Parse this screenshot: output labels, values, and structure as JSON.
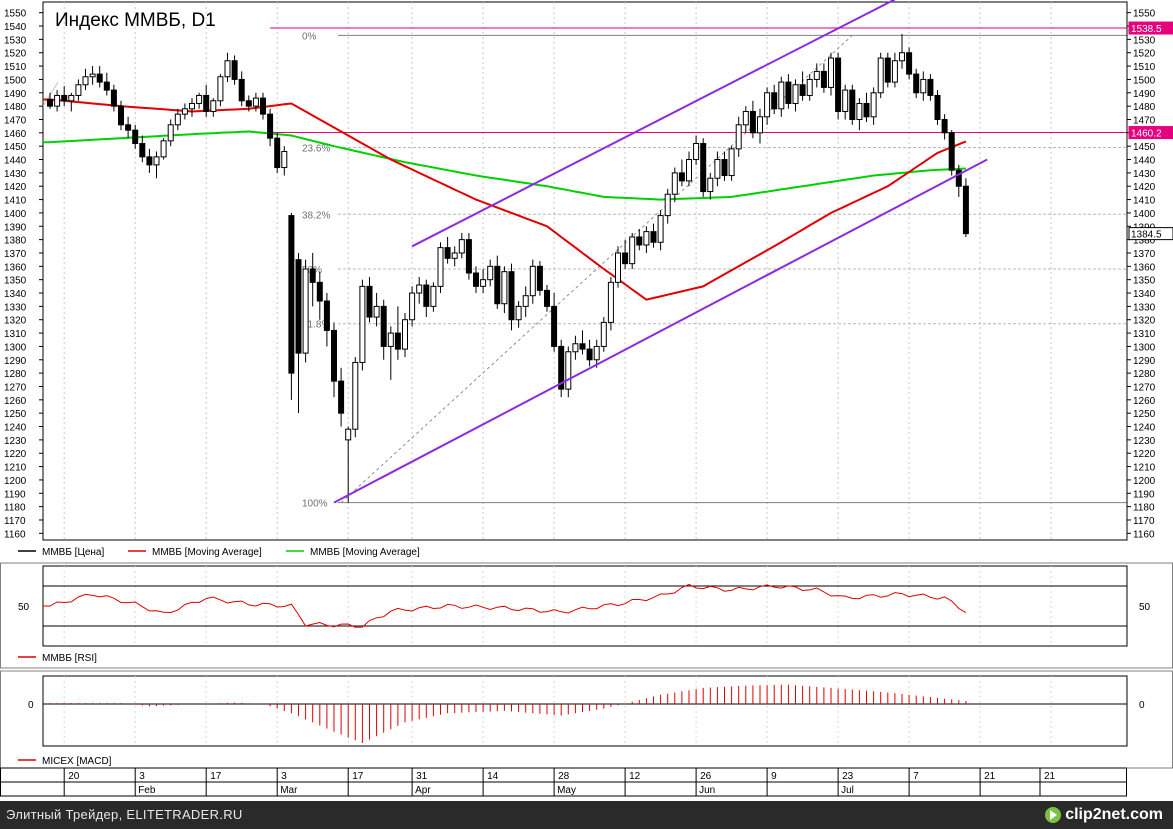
{
  "chart_data": {
    "type": "candlestick",
    "title": "Индекс ММВБ, D1",
    "ylim": [
      1155,
      1558
    ],
    "y_ticks": [
      1160,
      1170,
      1180,
      1190,
      1200,
      1210,
      1220,
      1230,
      1240,
      1250,
      1260,
      1270,
      1280,
      1290,
      1300,
      1310,
      1320,
      1330,
      1340,
      1350,
      1360,
      1370,
      1380,
      1390,
      1400,
      1410,
      1420,
      1430,
      1440,
      1450,
      1460,
      1470,
      1480,
      1490,
      1500,
      1510,
      1520,
      1530,
      1540,
      1550
    ],
    "price_labels": [
      {
        "value": 1538.5,
        "label": "1538.5",
        "color": "#e6007e"
      },
      {
        "value": 1460.2,
        "label": "1460.2",
        "color": "#e6007e"
      },
      {
        "value": 1384.5,
        "label": "1384.5",
        "color": "#000000"
      }
    ],
    "horizontal_lines": [
      1538.5,
      1460.2
    ],
    "fib_levels": [
      {
        "label": "0%",
        "value": 1533
      },
      {
        "label": "23.6%",
        "value": 1449
      },
      {
        "label": "38.2%",
        "value": 1399
      },
      {
        "label": "50%",
        "value": 1358
      },
      {
        "label": "61.8%",
        "value": 1317
      },
      {
        "label": "100%",
        "value": 1183
      }
    ],
    "fib_line": {
      "from": [
        41,
        1183
      ],
      "to": [
        113,
        1533
      ]
    },
    "channel_upper": {
      "from": [
        51,
        1375
      ],
      "to": [
        119,
        1560
      ]
    },
    "channel_lower": {
      "from": [
        40,
        1183
      ],
      "to": [
        132,
        1440
      ]
    },
    "x_ticks": [
      {
        "i": 2,
        "label": "20"
      },
      {
        "i": 12,
        "label": "3"
      },
      {
        "i": 22,
        "label": "17"
      },
      {
        "i": 32,
        "label": "3"
      },
      {
        "i": 42,
        "label": "17"
      },
      {
        "i": 51,
        "label": "31"
      },
      {
        "i": 61,
        "label": "14"
      },
      {
        "i": 71,
        "label": "28"
      },
      {
        "i": 81,
        "label": "12"
      },
      {
        "i": 91,
        "label": "26"
      },
      {
        "i": 101,
        "label": "9"
      },
      {
        "i": 111,
        "label": "23"
      },
      {
        "i": 121,
        "label": "7"
      },
      {
        "i": 131,
        "label": "21"
      },
      {
        "i": 141,
        "label": "21"
      }
    ],
    "month_labels": [
      {
        "i": 12,
        "label": "Feb"
      },
      {
        "i": 32,
        "label": "Mar"
      },
      {
        "i": 51,
        "label": "Apr"
      },
      {
        "i": 71,
        "label": "May"
      },
      {
        "i": 91,
        "label": "Jun"
      },
      {
        "i": 111,
        "label": "Jul"
      }
    ],
    "candles": [
      [
        1485,
        1490,
        1478,
        1480
      ],
      [
        1480,
        1492,
        1476,
        1488
      ],
      [
        1488,
        1495,
        1480,
        1484
      ],
      [
        1484,
        1490,
        1476,
        1488
      ],
      [
        1488,
        1500,
        1484,
        1496
      ],
      [
        1496,
        1508,
        1492,
        1502
      ],
      [
        1502,
        1510,
        1496,
        1504
      ],
      [
        1504,
        1510,
        1494,
        1498
      ],
      [
        1498,
        1505,
        1488,
        1492
      ],
      [
        1492,
        1496,
        1476,
        1480
      ],
      [
        1480,
        1484,
        1462,
        1466
      ],
      [
        1466,
        1472,
        1456,
        1462
      ],
      [
        1462,
        1466,
        1448,
        1452
      ],
      [
        1452,
        1458,
        1438,
        1442
      ],
      [
        1442,
        1448,
        1430,
        1436
      ],
      [
        1436,
        1446,
        1426,
        1442
      ],
      [
        1442,
        1456,
        1440,
        1454
      ],
      [
        1454,
        1470,
        1450,
        1466
      ],
      [
        1466,
        1478,
        1462,
        1474
      ],
      [
        1474,
        1482,
        1470,
        1478
      ],
      [
        1478,
        1486,
        1472,
        1482
      ],
      [
        1482,
        1490,
        1478,
        1488
      ],
      [
        1488,
        1496,
        1472,
        1476
      ],
      [
        1476,
        1486,
        1472,
        1484
      ],
      [
        1484,
        1504,
        1480,
        1502
      ],
      [
        1502,
        1520,
        1498,
        1514
      ],
      [
        1514,
        1518,
        1496,
        1500
      ],
      [
        1500,
        1506,
        1480,
        1484
      ],
      [
        1484,
        1488,
        1476,
        1480
      ],
      [
        1480,
        1490,
        1476,
        1486
      ],
      [
        1486,
        1490,
        1470,
        1474
      ],
      [
        1474,
        1478,
        1450,
        1456
      ],
      [
        1456,
        1460,
        1430,
        1434
      ],
      [
        1434,
        1450,
        1428,
        1446
      ],
      [
        1398,
        1400,
        1260,
        1280
      ],
      [
        1365,
        1370,
        1250,
        1295
      ],
      [
        1295,
        1365,
        1288,
        1358
      ],
      [
        1358,
        1370,
        1330,
        1348
      ],
      [
        1348,
        1356,
        1320,
        1334
      ],
      [
        1334,
        1340,
        1300,
        1312
      ],
      [
        1312,
        1318,
        1262,
        1274
      ],
      [
        1274,
        1284,
        1240,
        1250
      ],
      [
        1230,
        1240,
        1183,
        1238
      ],
      [
        1238,
        1292,
        1232,
        1288
      ],
      [
        1288,
        1350,
        1282,
        1345
      ],
      [
        1345,
        1352,
        1318,
        1322
      ],
      [
        1322,
        1340,
        1315,
        1330
      ],
      [
        1330,
        1335,
        1290,
        1300
      ],
      [
        1300,
        1315,
        1275,
        1310
      ],
      [
        1310,
        1330,
        1290,
        1298
      ],
      [
        1298,
        1325,
        1292,
        1320
      ],
      [
        1320,
        1345,
        1315,
        1340
      ],
      [
        1340,
        1352,
        1332,
        1346
      ],
      [
        1346,
        1350,
        1322,
        1330
      ],
      [
        1330,
        1348,
        1326,
        1345
      ],
      [
        1345,
        1378,
        1340,
        1374
      ],
      [
        1374,
        1382,
        1362,
        1366
      ],
      [
        1366,
        1375,
        1360,
        1370
      ],
      [
        1370,
        1385,
        1366,
        1380
      ],
      [
        1380,
        1385,
        1350,
        1355
      ],
      [
        1355,
        1360,
        1340,
        1345
      ],
      [
        1345,
        1358,
        1340,
        1350
      ],
      [
        1350,
        1365,
        1345,
        1360
      ],
      [
        1360,
        1368,
        1328,
        1332
      ],
      [
        1332,
        1360,
        1325,
        1356
      ],
      [
        1356,
        1362,
        1312,
        1320
      ],
      [
        1320,
        1334,
        1314,
        1330
      ],
      [
        1330,
        1345,
        1322,
        1338
      ],
      [
        1338,
        1365,
        1332,
        1360
      ],
      [
        1360,
        1364,
        1338,
        1342
      ],
      [
        1342,
        1346,
        1326,
        1330
      ],
      [
        1330,
        1340,
        1296,
        1300
      ],
      [
        1300,
        1305,
        1262,
        1268
      ],
      [
        1268,
        1300,
        1262,
        1296
      ],
      [
        1296,
        1308,
        1290,
        1302
      ],
      [
        1302,
        1312,
        1294,
        1298
      ],
      [
        1298,
        1305,
        1285,
        1290
      ],
      [
        1290,
        1305,
        1284,
        1300
      ],
      [
        1300,
        1322,
        1296,
        1318
      ],
      [
        1318,
        1352,
        1312,
        1348
      ],
      [
        1348,
        1375,
        1344,
        1370
      ],
      [
        1370,
        1380,
        1358,
        1362
      ],
      [
        1362,
        1385,
        1358,
        1382
      ],
      [
        1382,
        1388,
        1372,
        1376
      ],
      [
        1376,
        1390,
        1370,
        1386
      ],
      [
        1386,
        1392,
        1374,
        1378
      ],
      [
        1378,
        1402,
        1372,
        1398
      ],
      [
        1398,
        1418,
        1392,
        1414
      ],
      [
        1414,
        1434,
        1408,
        1430
      ],
      [
        1430,
        1440,
        1420,
        1424
      ],
      [
        1424,
        1446,
        1420,
        1440
      ],
      [
        1440,
        1458,
        1436,
        1452
      ],
      [
        1452,
        1456,
        1412,
        1416
      ],
      [
        1416,
        1430,
        1410,
        1426
      ],
      [
        1426,
        1446,
        1420,
        1440
      ],
      [
        1440,
        1446,
        1424,
        1428
      ],
      [
        1428,
        1450,
        1424,
        1448
      ],
      [
        1448,
        1472,
        1442,
        1466
      ],
      [
        1466,
        1480,
        1460,
        1476
      ],
      [
        1476,
        1484,
        1456,
        1460
      ],
      [
        1460,
        1478,
        1452,
        1472
      ],
      [
        1472,
        1494,
        1466,
        1490
      ],
      [
        1490,
        1496,
        1474,
        1478
      ],
      [
        1478,
        1502,
        1472,
        1498
      ],
      [
        1498,
        1504,
        1478,
        1482
      ],
      [
        1482,
        1500,
        1476,
        1496
      ],
      [
        1496,
        1506,
        1484,
        1488
      ],
      [
        1488,
        1504,
        1484,
        1500
      ],
      [
        1500,
        1512,
        1494,
        1506
      ],
      [
        1506,
        1512,
        1490,
        1494
      ],
      [
        1494,
        1520,
        1488,
        1516
      ],
      [
        1516,
        1520,
        1470,
        1476
      ],
      [
        1476,
        1496,
        1470,
        1492
      ],
      [
        1492,
        1496,
        1466,
        1470
      ],
      [
        1470,
        1486,
        1462,
        1482
      ],
      [
        1482,
        1490,
        1468,
        1472
      ],
      [
        1472,
        1494,
        1466,
        1490
      ],
      [
        1490,
        1520,
        1486,
        1516
      ],
      [
        1516,
        1520,
        1494,
        1498
      ],
      [
        1498,
        1520,
        1494,
        1514
      ],
      [
        1514,
        1534,
        1508,
        1520
      ],
      [
        1520,
        1524,
        1500,
        1504
      ],
      [
        1504,
        1508,
        1486,
        1490
      ],
      [
        1490,
        1506,
        1484,
        1500
      ],
      [
        1500,
        1504,
        1484,
        1488
      ],
      [
        1488,
        1492,
        1466,
        1470
      ],
      [
        1470,
        1474,
        1455,
        1460
      ],
      [
        1460,
        1462,
        1428,
        1432
      ],
      [
        1432,
        1436,
        1412,
        1420
      ],
      [
        1420,
        1426,
        1382,
        1384.5
      ]
    ],
    "ma_red_knots": [
      [
        0,
        1485
      ],
      [
        10,
        1480
      ],
      [
        20,
        1476
      ],
      [
        28,
        1478
      ],
      [
        34,
        1482
      ],
      [
        40,
        1464
      ],
      [
        48,
        1440
      ],
      [
        60,
        1410
      ],
      [
        70,
        1390
      ],
      [
        78,
        1358
      ],
      [
        84,
        1335
      ],
      [
        92,
        1345
      ],
      [
        102,
        1375
      ],
      [
        110,
        1400
      ],
      [
        118,
        1420
      ],
      [
        125,
        1445
      ],
      [
        132,
        1460
      ]
    ],
    "ma_green_knots": [
      [
        0,
        1453
      ],
      [
        10,
        1456
      ],
      [
        20,
        1459
      ],
      [
        28,
        1461
      ],
      [
        34,
        1458
      ],
      [
        40,
        1450
      ],
      [
        50,
        1438
      ],
      [
        60,
        1428
      ],
      [
        70,
        1420
      ],
      [
        78,
        1412
      ],
      [
        86,
        1410
      ],
      [
        96,
        1412
      ],
      [
        106,
        1420
      ],
      [
        116,
        1428
      ],
      [
        124,
        1432
      ],
      [
        132,
        1434
      ]
    ],
    "legend": [
      {
        "name": "ММВБ [Цена]",
        "color": "#000000"
      },
      {
        "name": "ММВБ [Moving Average]",
        "color": "#e00000"
      },
      {
        "name": "ММВБ [Moving Average]",
        "color": "#00d000"
      }
    ],
    "rsi": {
      "label": "ММВБ [RSI]",
      "tick": "50",
      "upper": 70,
      "lower": 30,
      "knots": [
        [
          0,
          50
        ],
        [
          6,
          62
        ],
        [
          12,
          52
        ],
        [
          16,
          42
        ],
        [
          22,
          58
        ],
        [
          28,
          52
        ],
        [
          34,
          50
        ],
        [
          36,
          32
        ],
        [
          44,
          30
        ],
        [
          48,
          45
        ],
        [
          56,
          50
        ],
        [
          64,
          48
        ],
        [
          72,
          44
        ],
        [
          80,
          52
        ],
        [
          86,
          60
        ],
        [
          90,
          70
        ],
        [
          96,
          66
        ],
        [
          102,
          70
        ],
        [
          108,
          66
        ],
        [
          112,
          58
        ],
        [
          116,
          60
        ],
        [
          120,
          62
        ],
        [
          126,
          58
        ],
        [
          130,
          40
        ],
        [
          132,
          34
        ]
      ]
    },
    "macd": {
      "label": "MICEX [MACD]",
      "tick": "0",
      "knots": [
        [
          0,
          0.2
        ],
        [
          10,
          0.2
        ],
        [
          14,
          -0.5
        ],
        [
          18,
          -0.2
        ],
        [
          26,
          0.3
        ],
        [
          30,
          0
        ],
        [
          34,
          -2
        ],
        [
          40,
          -6
        ],
        [
          44,
          -8.5
        ],
        [
          50,
          -4
        ],
        [
          56,
          -2
        ],
        [
          64,
          -1.5
        ],
        [
          72,
          -2.5
        ],
        [
          78,
          -1
        ],
        [
          86,
          2
        ],
        [
          92,
          3.5
        ],
        [
          98,
          4
        ],
        [
          104,
          4.2
        ],
        [
          110,
          3.5
        ],
        [
          118,
          2.5
        ],
        [
          124,
          1.5
        ],
        [
          130,
          0.5
        ],
        [
          132,
          0.3
        ]
      ]
    }
  },
  "footer": {
    "text": "Элитный Трейдер, ELITETRADER.RU",
    "logo": "clip2net.com",
    "logo_icon": "play-icon",
    "logo_icon_color": "#7cc242"
  }
}
